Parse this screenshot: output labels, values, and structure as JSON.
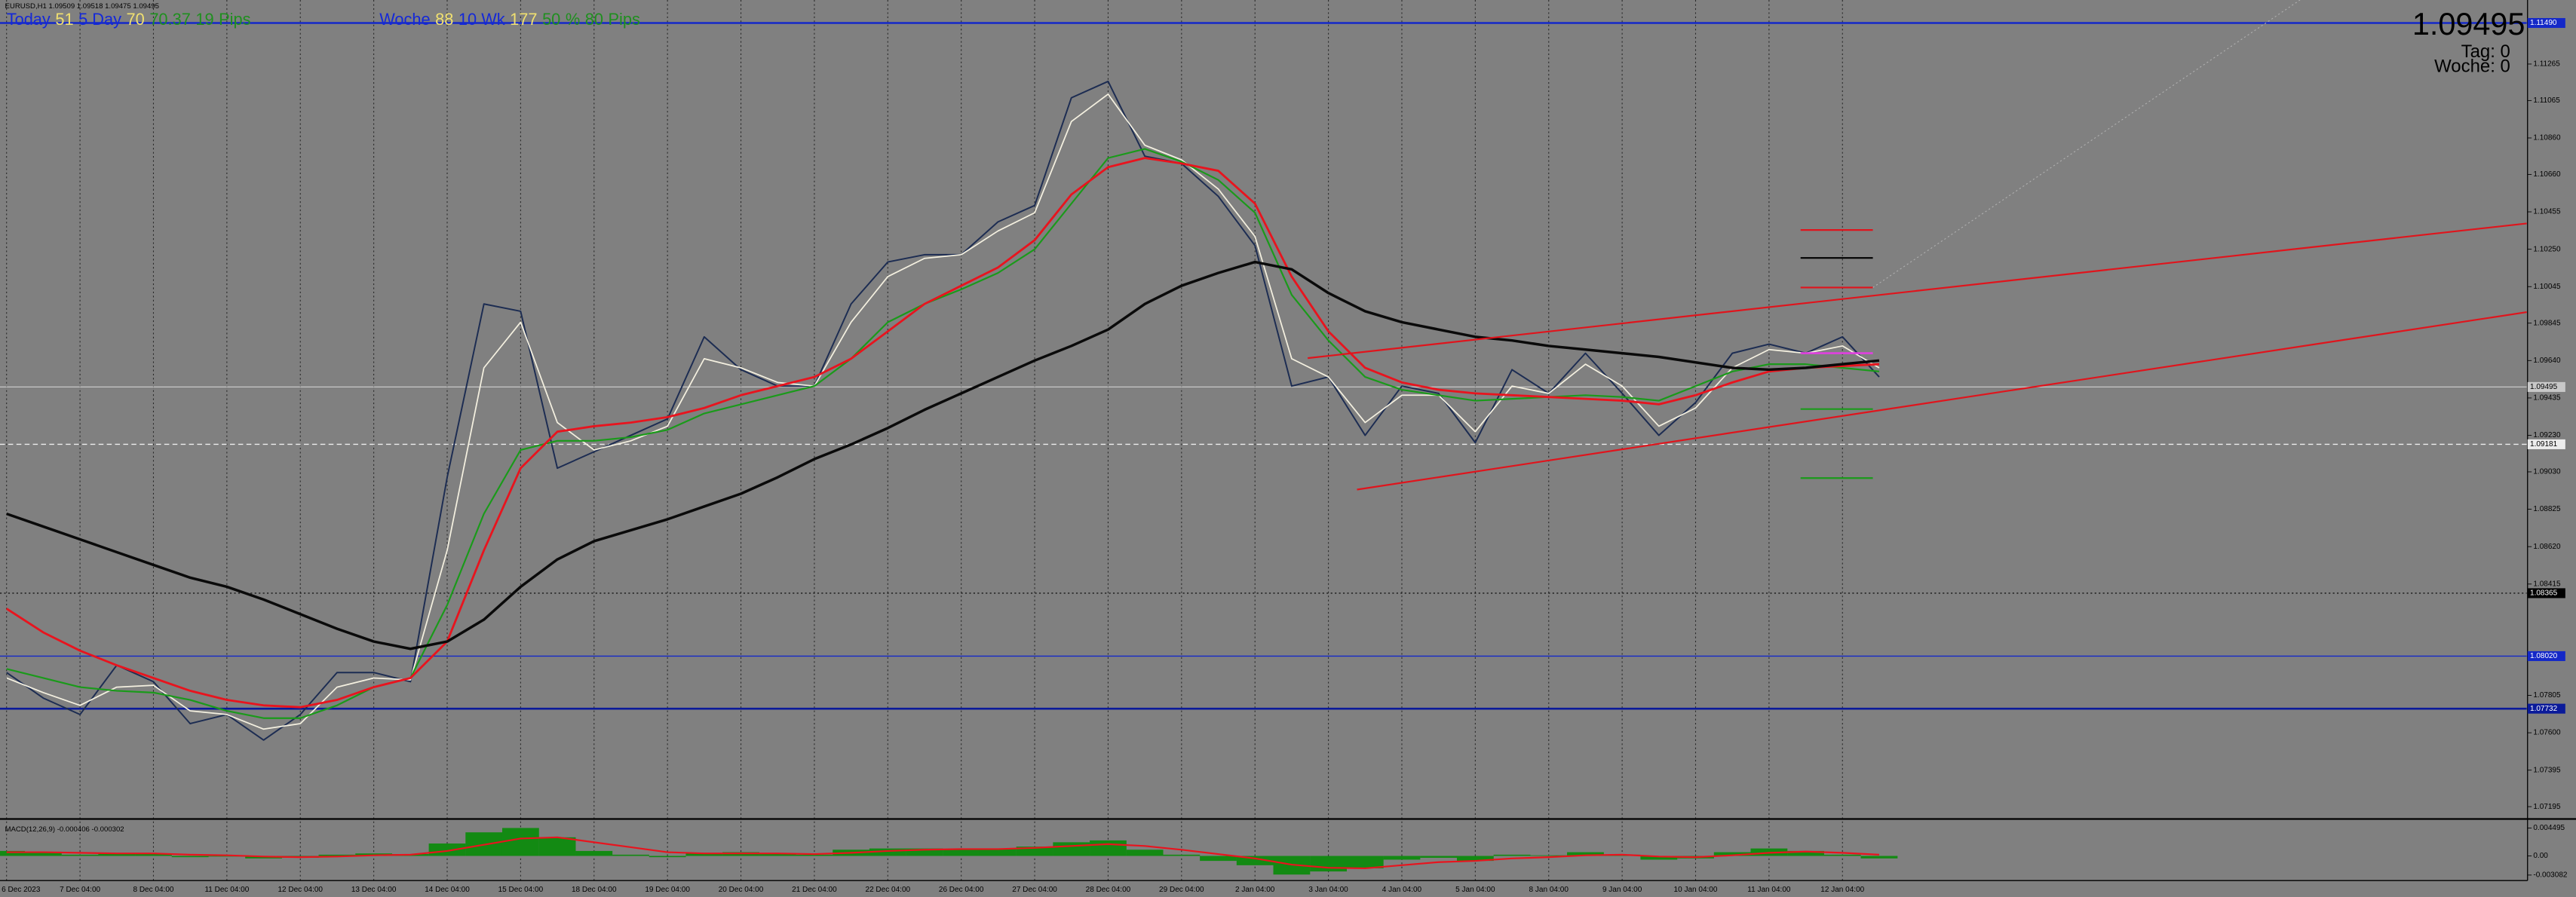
{
  "info_bar": {
    "left": [
      {
        "text": "Today",
        "color": "#1428d8"
      },
      {
        "text": "51",
        "color": "#f0e070"
      },
      {
        "text": "5 Day",
        "color": "#1428d8"
      },
      {
        "text": "70",
        "color": "#f0e070"
      },
      {
        "text": "70.37",
        "color": "#1f8f1f"
      },
      {
        "text": "19",
        "color": "#1f8f1f"
      },
      {
        "text": "Pips",
        "color": "#1f8f1f"
      }
    ],
    "right": [
      {
        "text": "Woche",
        "color": "#1428d8"
      },
      {
        "text": "88",
        "color": "#f0e070"
      },
      {
        "text": "10 Wk",
        "color": "#1428d8"
      },
      {
        "text": "177",
        "color": "#f0e070"
      },
      {
        "text": "50",
        "color": "#1f8f1f"
      },
      {
        "text": "%",
        "color": "#1f8f1f"
      },
      {
        "text": "80",
        "color": "#1f8f1f"
      },
      {
        "text": "Pips",
        "color": "#1f8f1f"
      }
    ]
  },
  "price_panel": {
    "price": "1.09495",
    "tag": "Tag: 0",
    "woche": "Woche: 0"
  },
  "chart_data": [
    {
      "type": "line",
      "title": "EURUSD,H1  1.09509 1.09518 1.09475 1.09495",
      "categories": [
        "6 Dec 2023",
        null,
        "7 Dec 04:00",
        null,
        "8 Dec 04:00",
        null,
        "11 Dec 04:00",
        null,
        "12 Dec 04:00",
        null,
        "13 Dec 04:00",
        null,
        "14 Dec 04:00",
        null,
        "15 Dec 04:00",
        null,
        "18 Dec 04:00",
        null,
        "19 Dec 04:00",
        null,
        "20 Dec 04:00",
        null,
        "21 Dec 04:00",
        null,
        "22 Dec 04:00",
        null,
        "26 Dec 04:00",
        null,
        "27 Dec 04:00",
        null,
        "28 Dec 04:00",
        null,
        "29 Dec 04:00",
        null,
        "2 Jan 04:00",
        null,
        "3 Jan 04:00",
        null,
        "4 Jan 04:00",
        null,
        "5 Jan 04:00",
        null,
        "8 Jan 04:00",
        null,
        "9 Jan 04:00",
        null,
        "10 Jan 04:00",
        null,
        "11 Jan 04:00",
        null,
        "12 Jan 04:00",
        null
      ],
      "series": [
        {
          "color": "#1c2c52",
          "line_width": 0.9,
          "values": [
            1.0793,
            1.0779,
            1.077,
            1.0797,
            1.0788,
            1.0765,
            1.077,
            1.0756,
            1.077,
            1.0793,
            1.0793,
            1.0788,
            1.09,
            1.0995,
            1.0991,
            1.0905,
            1.0914,
            1.0923,
            1.0932,
            1.0977,
            1.0959,
            1.095,
            1.095,
            1.0995,
            1.1018,
            1.1022,
            1.1022,
            1.104,
            1.1049,
            1.1108,
            1.1117,
            1.1076,
            1.1072,
            1.1054,
            1.1027,
            1.095,
            1.0955,
            1.0923,
            1.095,
            1.0946,
            1.0919,
            1.0959,
            1.0946,
            1.0968,
            1.0946,
            1.0923,
            1.0941,
            1.0968,
            1.0973,
            1.0968,
            1.0977,
            1.0955
          ]
        },
        {
          "color": "#f4f0e0",
          "line_width": 0.8,
          "values": [
            1.079,
            1.0782,
            1.0775,
            1.0785,
            1.0786,
            1.0772,
            1.077,
            1.0762,
            1.0765,
            1.0785,
            1.079,
            1.0789,
            1.086,
            1.096,
            1.0985,
            1.093,
            1.0915,
            1.092,
            1.0928,
            1.0965,
            1.096,
            1.0952,
            1.095,
            1.0985,
            1.101,
            1.102,
            1.1022,
            1.1035,
            1.1045,
            1.1095,
            1.111,
            1.1082,
            1.1074,
            1.1058,
            1.1032,
            1.0965,
            1.0955,
            1.093,
            1.0945,
            1.0945,
            1.0925,
            1.095,
            1.0946,
            1.0962,
            1.095,
            1.0928,
            1.0938,
            1.096,
            1.097,
            1.0968,
            1.0972,
            1.096
          ]
        },
        {
          "color": "#1a9a1a",
          "line_width": 1.0,
          "values": [
            1.0795,
            1.079,
            1.0785,
            1.0783,
            1.0782,
            1.0778,
            1.0772,
            1.0768,
            1.0768,
            1.0775,
            1.0785,
            1.079,
            1.083,
            1.088,
            1.0915,
            1.092,
            1.092,
            1.0922,
            1.0926,
            1.0935,
            1.094,
            1.0945,
            1.095,
            1.0965,
            1.0985,
            1.0995,
            1.1003,
            1.1012,
            1.1025,
            1.105,
            1.1075,
            1.108,
            1.1073,
            1.1063,
            1.1045,
            1.1,
            1.0975,
            1.0955,
            1.0948,
            1.0945,
            1.0942,
            1.0943,
            1.0944,
            1.0945,
            1.0944,
            1.0942,
            1.095,
            1.0958,
            1.0962,
            1.0962,
            1.096,
            1.0958
          ]
        },
        {
          "color": "#e8141e",
          "line_width": 1.3,
          "values": [
            1.0828,
            1.0815,
            1.0805,
            1.0797,
            1.079,
            1.0783,
            1.0778,
            1.0775,
            1.0774,
            1.0778,
            1.0785,
            1.079,
            1.081,
            1.086,
            1.0905,
            1.0925,
            1.0928,
            1.093,
            1.0933,
            1.0938,
            1.0945,
            1.095,
            1.0955,
            1.0965,
            1.098,
            1.0995,
            1.1005,
            1.1015,
            1.103,
            1.1055,
            1.107,
            1.1075,
            1.1072,
            1.1068,
            1.105,
            1.101,
            1.098,
            1.096,
            1.0952,
            1.0948,
            1.0946,
            1.0945,
            1.0944,
            1.0943,
            1.0942,
            1.094,
            1.0945,
            1.0952,
            1.0958,
            1.096,
            1.0961,
            1.0962
          ]
        },
        {
          "color": "#0a0a0a",
          "line_width": 1.6,
          "values": [
            1.088,
            1.0873,
            1.0866,
            1.0859,
            1.0852,
            1.0845,
            1.084,
            1.0833,
            1.0825,
            1.0817,
            1.081,
            1.0806,
            1.081,
            1.0822,
            1.084,
            1.0855,
            1.0865,
            1.0871,
            1.0877,
            1.0884,
            1.0891,
            1.09,
            1.091,
            1.0918,
            1.0927,
            1.0937,
            1.0946,
            1.0955,
            1.0964,
            1.0972,
            1.0981,
            1.0995,
            1.1005,
            1.1012,
            1.1018,
            1.1014,
            1.1001,
            1.0991,
            1.0985,
            1.0981,
            1.0977,
            1.0975,
            1.0972,
            1.097,
            1.0968,
            1.0966,
            1.0963,
            1.096,
            1.0959,
            1.096,
            1.0962,
            1.0964
          ]
        }
      ],
      "ylim": [
        1.07132,
        1.11616
      ],
      "yticks": [
        {
          "value": 1.11265,
          "label": "1.11265"
        },
        {
          "value": 1.11065,
          "label": "1.11065"
        },
        {
          "value": 1.1086,
          "label": "1.10860"
        },
        {
          "value": 1.1066,
          "label": "1.10660"
        },
        {
          "value": 1.10455,
          "label": "1.10455"
        },
        {
          "value": 1.1025,
          "label": "1.10250"
        },
        {
          "value": 1.10045,
          "label": "1.10045"
        },
        {
          "value": 1.09845,
          "label": "1.09845"
        },
        {
          "value": 1.0964,
          "label": "1.09640"
        },
        {
          "value": 1.09435,
          "label": "1.09435"
        },
        {
          "value": 1.0923,
          "label": "1.09230"
        },
        {
          "value": 1.0903,
          "label": "1.09030"
        },
        {
          "value": 1.08825,
          "label": "1.08825"
        },
        {
          "value": 1.0862,
          "label": "1.08620"
        },
        {
          "value": 1.08415,
          "label": "1.08415"
        },
        {
          "value": 1.07805,
          "label": "1.07805"
        },
        {
          "value": 1.076,
          "label": "1.07600"
        },
        {
          "value": 1.07395,
          "label": "1.07395"
        },
        {
          "value": 1.07195,
          "label": "1.07195"
        }
      ],
      "price_lines": [
        {
          "value": 1.1149,
          "label": "1.11490",
          "color": "#1428c8",
          "dash": "none",
          "line_width": 1.2
        },
        {
          "value": 1.09495,
          "label": "1.09495",
          "color": "#c8c8c8",
          "dash": "none",
          "line_width": 0.6
        },
        {
          "value": 1.09181,
          "label": "1.09181",
          "color": "#ececec",
          "dash": "3 2",
          "line_width": 0.6
        },
        {
          "value": 1.08365,
          "label": "1.08365",
          "color": "#000000",
          "dash": "1 1.5",
          "line_width": 0.5
        },
        {
          "value": 1.0802,
          "label": "1.08020",
          "color": "#1428c8",
          "dash": "none",
          "line_width": 0.6
        },
        {
          "value": 1.07732,
          "label": "1.07732",
          "color": "#0a1a9a",
          "dash": "none",
          "line_width": 1.2
        }
      ],
      "grid": true
    },
    {
      "type": "bar",
      "title": "MACD(12,26,9) -0.000406 -0.000302",
      "series": [
        {
          "type": "bar",
          "color": "#138a13",
          "values": [
            0.0008,
            0.0005,
            0.0002,
            0.0004,
            0.0003,
            -0.0002,
            -0.0001,
            -0.0004,
            -0.0003,
            0.0002,
            0.0004,
            0.0003,
            0.002,
            0.0038,
            0.0045,
            0.003,
            0.0008,
            0.0002,
            -0.0002,
            0.0005,
            0.0006,
            0.0003,
            0.0002,
            0.001,
            0.0012,
            0.0012,
            0.001,
            0.0012,
            0.0015,
            0.0022,
            0.0025,
            0.001,
            0.0002,
            -0.0008,
            -0.0015,
            -0.003,
            -0.0025,
            -0.002,
            -0.0006,
            -0.0003,
            -0.0008,
            0.0002,
            0.0001,
            0.0006,
            0.0002,
            -0.0006,
            -0.0004,
            0.0006,
            0.0012,
            0.0008,
            0.0002,
            -0.0004
          ]
        },
        {
          "type": "line",
          "color": "#e8141e",
          "values": [
            0.0006,
            0.0006,
            0.0005,
            0.0004,
            0.0004,
            0.0002,
            0.0001,
            -0.0001,
            -0.0002,
            -0.0001,
            0.0001,
            0.0002,
            0.0008,
            0.0018,
            0.0028,
            0.003,
            0.0022,
            0.0014,
            0.0006,
            0.0004,
            0.0004,
            0.0004,
            0.0003,
            0.0005,
            0.0008,
            0.001,
            0.0011,
            0.0011,
            0.0013,
            0.0016,
            0.0019,
            0.0016,
            0.001,
            0.0003,
            -0.0004,
            -0.0014,
            -0.0019,
            -0.002,
            -0.0015,
            -0.001,
            -0.0008,
            -0.0004,
            -0.0002,
            0.0001,
            0.0002,
            -0.0001,
            -0.0002,
            0.0001,
            0.0005,
            0.0007,
            0.0005,
            0.0002
          ]
        }
      ],
      "ylim": [
        -0.00397,
        0.00582
      ],
      "yticks": [
        0.004495,
        {
          "value": 0,
          "label": "0.00"
        },
        -0.003082
      ]
    }
  ]
}
